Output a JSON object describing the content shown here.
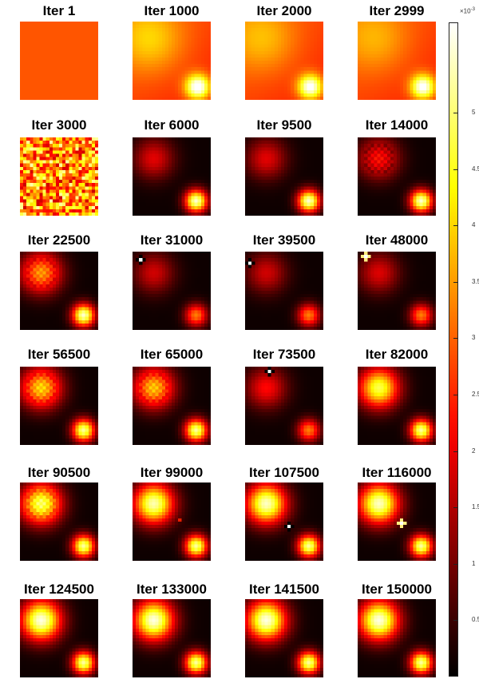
{
  "chart_data": {
    "type": "heatmap",
    "colormap": "hot",
    "grid_size": 24,
    "clim": [
      0,
      0.0058
    ],
    "colorbar": {
      "ticks": [
        {
          "value": 0.0005,
          "label": "0.5"
        },
        {
          "value": 0.001,
          "label": "1"
        },
        {
          "value": 0.0015,
          "label": "1.5"
        },
        {
          "value": 0.002,
          "label": "2"
        },
        {
          "value": 0.0025,
          "label": "2.5"
        },
        {
          "value": 0.003,
          "label": "3"
        },
        {
          "value": 0.0035,
          "label": "3.5"
        },
        {
          "value": 0.004,
          "label": "4"
        },
        {
          "value": 0.0045,
          "label": "4.5"
        },
        {
          "value": 0.005,
          "label": "5"
        }
      ],
      "exponent_label": "×10",
      "exponent": "-3"
    },
    "panels": [
      {
        "title": "Iter 1",
        "mode": "uniform"
      },
      {
        "title": "Iter 1000",
        "mode": "early",
        "blob1": 0.55,
        "blob2": 1.0
      },
      {
        "title": "Iter 2000",
        "mode": "early",
        "blob1": 0.45,
        "blob2": 0.95
      },
      {
        "title": "Iter 2999",
        "mode": "early",
        "blob1": 0.4,
        "blob2": 0.95
      },
      {
        "title": "Iter 3000",
        "mode": "noise"
      },
      {
        "title": "Iter 6000",
        "mode": "blobs",
        "blob1": 0.33,
        "blob2": 0.95
      },
      {
        "title": "Iter 9500",
        "mode": "blobs",
        "blob1": 0.33,
        "blob2": 0.95
      },
      {
        "title": "Iter 14000",
        "mode": "blobs",
        "blob1": 0.42,
        "blob2": 0.95,
        "checker": true
      },
      {
        "title": "Iter 22500",
        "mode": "blobs",
        "blob1": 0.65,
        "blob2": 0.95,
        "checker": true
      },
      {
        "title": "Iter 31000",
        "mode": "blobs",
        "blob1": 0.3,
        "blob2": 0.55,
        "spike": [
          2,
          2
        ]
      },
      {
        "title": "Iter 39500",
        "mode": "blobs",
        "blob1": 0.3,
        "blob2": 0.55,
        "spike": [
          3,
          1
        ]
      },
      {
        "title": "Iter 48000",
        "mode": "blobs",
        "blob1": 0.32,
        "blob2": 0.55,
        "spike": [
          1,
          2
        ]
      },
      {
        "title": "Iter 56500",
        "mode": "blobs",
        "blob1": 0.75,
        "blob2": 0.9,
        "checker": true
      },
      {
        "title": "Iter 65000",
        "mode": "blobs",
        "blob1": 0.72,
        "blob2": 0.9,
        "checker": true
      },
      {
        "title": "Iter 73500",
        "mode": "blobs",
        "blob1": 0.38,
        "blob2": 0.55,
        "spike": [
          1,
          7
        ]
      },
      {
        "title": "Iter 82000",
        "mode": "blobs",
        "blob1": 0.85,
        "blob2": 0.9
      },
      {
        "title": "Iter 90500",
        "mode": "blobs",
        "blob1": 0.92,
        "blob2": 0.9,
        "checker": true
      },
      {
        "title": "Iter 99000",
        "mode": "blobs",
        "blob1": 0.95,
        "blob2": 0.9,
        "spike": [
          11,
          14
        ],
        "spikeColor": "red"
      },
      {
        "title": "Iter 107500",
        "mode": "blobs",
        "blob1": 0.97,
        "blob2": 0.9,
        "spike": [
          13,
          13
        ]
      },
      {
        "title": "Iter 116000",
        "mode": "blobs",
        "blob1": 0.97,
        "blob2": 0.9,
        "spike": [
          12,
          13
        ]
      },
      {
        "title": "Iter 124500",
        "mode": "blobs",
        "blob1": 1.0,
        "blob2": 0.9
      },
      {
        "title": "Iter 133000",
        "mode": "blobs",
        "blob1": 1.0,
        "blob2": 0.9
      },
      {
        "title": "Iter 141500",
        "mode": "blobs",
        "blob1": 1.0,
        "blob2": 0.9
      },
      {
        "title": "Iter 150000",
        "mode": "blobs",
        "blob1": 1.0,
        "blob2": 0.9
      }
    ]
  }
}
